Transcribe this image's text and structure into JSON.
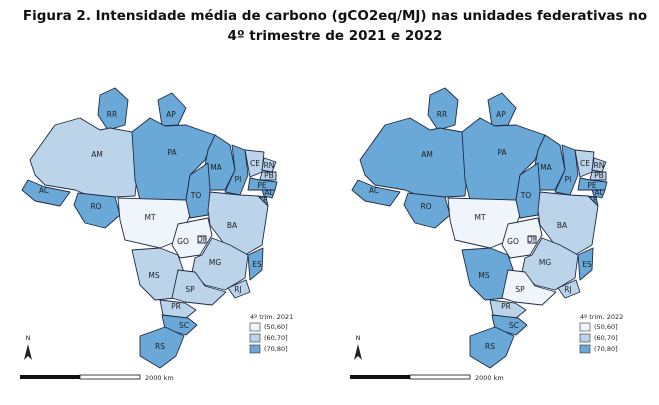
{
  "title": "Figura 2. Intensidade média de carbono (gCO2eq/MJ) nas unidades federativas no 4º trimestre de 2021 e 2022",
  "class_colors": [
    "#f0f4fb",
    "#bcd4ea",
    "#6aa8d7"
  ],
  "maps": [
    {
      "legend_title": "4º trim. 2021",
      "legend": [
        "(50,60]",
        "(60,70]",
        "(70,80]"
      ],
      "scale_label": "2000 km",
      "north": "N",
      "states": [
        {
          "label": "RR",
          "class": 2
        },
        {
          "label": "AP",
          "class": 2
        },
        {
          "label": "AM",
          "class": 1
        },
        {
          "label": "AC",
          "class": 2
        },
        {
          "label": "RO",
          "class": 2
        },
        {
          "label": "PA",
          "class": 2
        },
        {
          "label": "MT",
          "class": 0
        },
        {
          "label": "MA",
          "class": 2
        },
        {
          "label": "TO",
          "class": 2
        },
        {
          "label": "PI",
          "class": 2
        },
        {
          "label": "CE",
          "class": 1
        },
        {
          "label": "RN",
          "class": 1
        },
        {
          "label": "PB",
          "class": 1
        },
        {
          "label": "PE",
          "class": 2
        },
        {
          "label": "AL",
          "class": 2
        },
        {
          "label": "SE",
          "class": 2
        },
        {
          "label": "BA",
          "class": 1
        },
        {
          "label": "GO",
          "class": 0
        },
        {
          "label": "DF",
          "class": 0
        },
        {
          "label": "MG",
          "class": 1
        },
        {
          "label": "ES",
          "class": 2
        },
        {
          "label": "RJ",
          "class": 1
        },
        {
          "label": "MS",
          "class": 1
        },
        {
          "label": "SP",
          "class": 1
        },
        {
          "label": "PR",
          "class": 1
        },
        {
          "label": "SC",
          "class": 2
        },
        {
          "label": "RS",
          "class": 2
        }
      ]
    },
    {
      "legend_title": "4º trim. 2022",
      "legend": [
        "(50,60]",
        "(60,70]",
        "(70,80]"
      ],
      "scale_label": "2000 km",
      "north": "N",
      "states": [
        {
          "label": "RR",
          "class": 2
        },
        {
          "label": "AP",
          "class": 2
        },
        {
          "label": "AM",
          "class": 2
        },
        {
          "label": "AC",
          "class": 2
        },
        {
          "label": "RO",
          "class": 2
        },
        {
          "label": "PA",
          "class": 2
        },
        {
          "label": "MT",
          "class": 0
        },
        {
          "label": "MA",
          "class": 2
        },
        {
          "label": "TO",
          "class": 2
        },
        {
          "label": "PI",
          "class": 2
        },
        {
          "label": "CE",
          "class": 1
        },
        {
          "label": "RN",
          "class": 1
        },
        {
          "label": "PB",
          "class": 1
        },
        {
          "label": "PE",
          "class": 2
        },
        {
          "label": "AL",
          "class": 2
        },
        {
          "label": "SE",
          "class": 2
        },
        {
          "label": "BA",
          "class": 1
        },
        {
          "label": "GO",
          "class": 0
        },
        {
          "label": "DF",
          "class": 0
        },
        {
          "label": "MG",
          "class": 1
        },
        {
          "label": "ES",
          "class": 2
        },
        {
          "label": "RJ",
          "class": 1
        },
        {
          "label": "MS",
          "class": 2
        },
        {
          "label": "SP",
          "class": 0
        },
        {
          "label": "PR",
          "class": 1
        },
        {
          "label": "SC",
          "class": 2
        },
        {
          "label": "RS",
          "class": 2
        }
      ]
    }
  ]
}
